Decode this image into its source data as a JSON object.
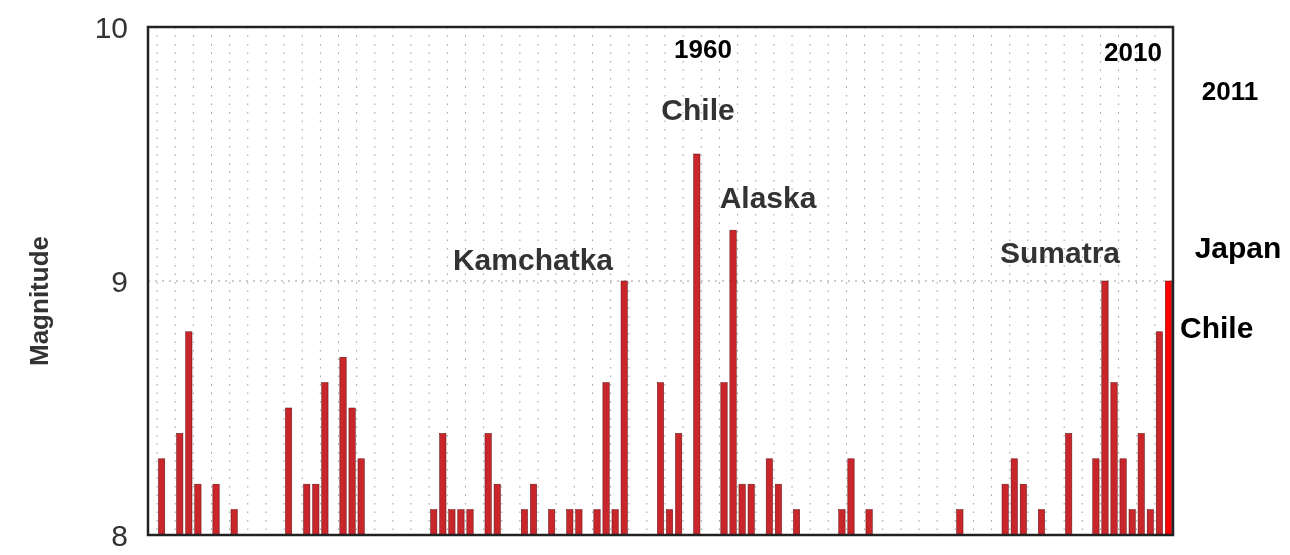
{
  "chart_data": {
    "type": "bar",
    "categories": [
      null,
      null,
      null,
      null,
      null,
      null,
      null,
      null,
      null,
      null,
      null,
      null,
      null,
      null,
      null,
      null,
      null,
      null,
      null,
      null,
      null,
      null,
      null,
      null,
      null,
      null,
      null,
      null,
      null,
      null,
      null,
      null,
      null,
      null,
      null,
      null,
      null,
      null,
      null,
      null,
      null,
      null,
      null,
      null,
      null,
      null,
      null,
      null,
      null,
      null,
      null,
      null,
      null,
      null,
      null,
      null,
      null,
      null,
      null,
      null,
      null,
      null,
      null,
      null,
      null,
      null,
      null,
      null,
      null,
      null,
      null,
      null,
      null,
      null,
      null,
      null,
      null,
      null,
      null,
      null,
      null,
      null,
      null,
      null,
      null,
      null,
      null,
      null,
      null,
      null,
      null,
      null,
      null,
      null,
      null,
      null,
      null,
      null,
      null,
      null,
      null,
      null,
      null,
      null,
      null,
      null,
      null,
      null,
      null,
      null,
      null,
      null,
      null
    ],
    "series": [
      {
        "color": "#c9262c",
        "values": [
          null,
          8.3,
          null,
          8.4,
          8.8,
          8.2,
          null,
          8.2,
          null,
          8.1,
          null,
          null,
          null,
          null,
          null,
          8.5,
          null,
          8.2,
          8.2,
          8.6,
          null,
          8.7,
          8.5,
          8.3,
          null,
          null,
          null,
          null,
          null,
          null,
          null,
          8.1,
          8.4,
          8.1,
          8.1,
          8.1,
          null,
          8.4,
          8.2,
          null,
          null,
          8.1,
          8.2,
          null,
          8.1,
          null,
          8.1,
          8.1,
          null,
          8.1,
          8.6,
          8.1,
          9.0,
          null,
          null,
          null,
          8.6,
          8.1,
          8.4,
          null,
          9.5,
          null,
          null,
          8.6,
          9.2,
          8.2,
          8.2,
          null,
          8.3,
          8.2,
          null,
          8.1,
          null,
          null,
          null,
          null,
          8.1,
          8.3,
          null,
          8.1,
          null,
          null,
          null,
          null,
          null,
          null,
          null,
          null,
          null,
          8.1,
          null,
          null,
          null,
          null,
          8.2,
          8.3,
          8.2,
          null,
          8.1,
          null,
          null,
          8.4,
          null,
          null,
          8.3,
          9.0,
          8.6,
          8.3,
          8.1,
          8.4,
          8.1,
          8.8,
          null
        ]
      },
      {
        "color": "#ff0000",
        "values": [
          null,
          null,
          null,
          null,
          null,
          null,
          null,
          null,
          null,
          null,
          null,
          null,
          null,
          null,
          null,
          null,
          null,
          null,
          null,
          null,
          null,
          null,
          null,
          null,
          null,
          null,
          null,
          null,
          null,
          null,
          null,
          null,
          null,
          null,
          null,
          null,
          null,
          null,
          null,
          null,
          null,
          null,
          null,
          null,
          null,
          null,
          null,
          null,
          null,
          null,
          null,
          null,
          null,
          null,
          null,
          null,
          null,
          null,
          null,
          null,
          null,
          null,
          null,
          null,
          null,
          null,
          null,
          null,
          null,
          null,
          null,
          null,
          null,
          null,
          null,
          null,
          null,
          null,
          null,
          null,
          null,
          null,
          null,
          null,
          null,
          null,
          null,
          null,
          null,
          null,
          null,
          null,
          null,
          null,
          null,
          null,
          null,
          null,
          null,
          null,
          null,
          null,
          null,
          null,
          null,
          null,
          null,
          null,
          null,
          null,
          null,
          null,
          9.0
        ]
      }
    ],
    "ylabel": "Magnitude",
    "ylim": [
      8,
      10
    ],
    "yticks": [
      8,
      9,
      10
    ],
    "grid": true,
    "tick_labels": "y",
    "annotations": [
      "1960",
      "Chile",
      "Alaska",
      "Kamchatka",
      "Sumatra",
      "2010",
      "Chile",
      "2011",
      "Japan"
    ]
  }
}
